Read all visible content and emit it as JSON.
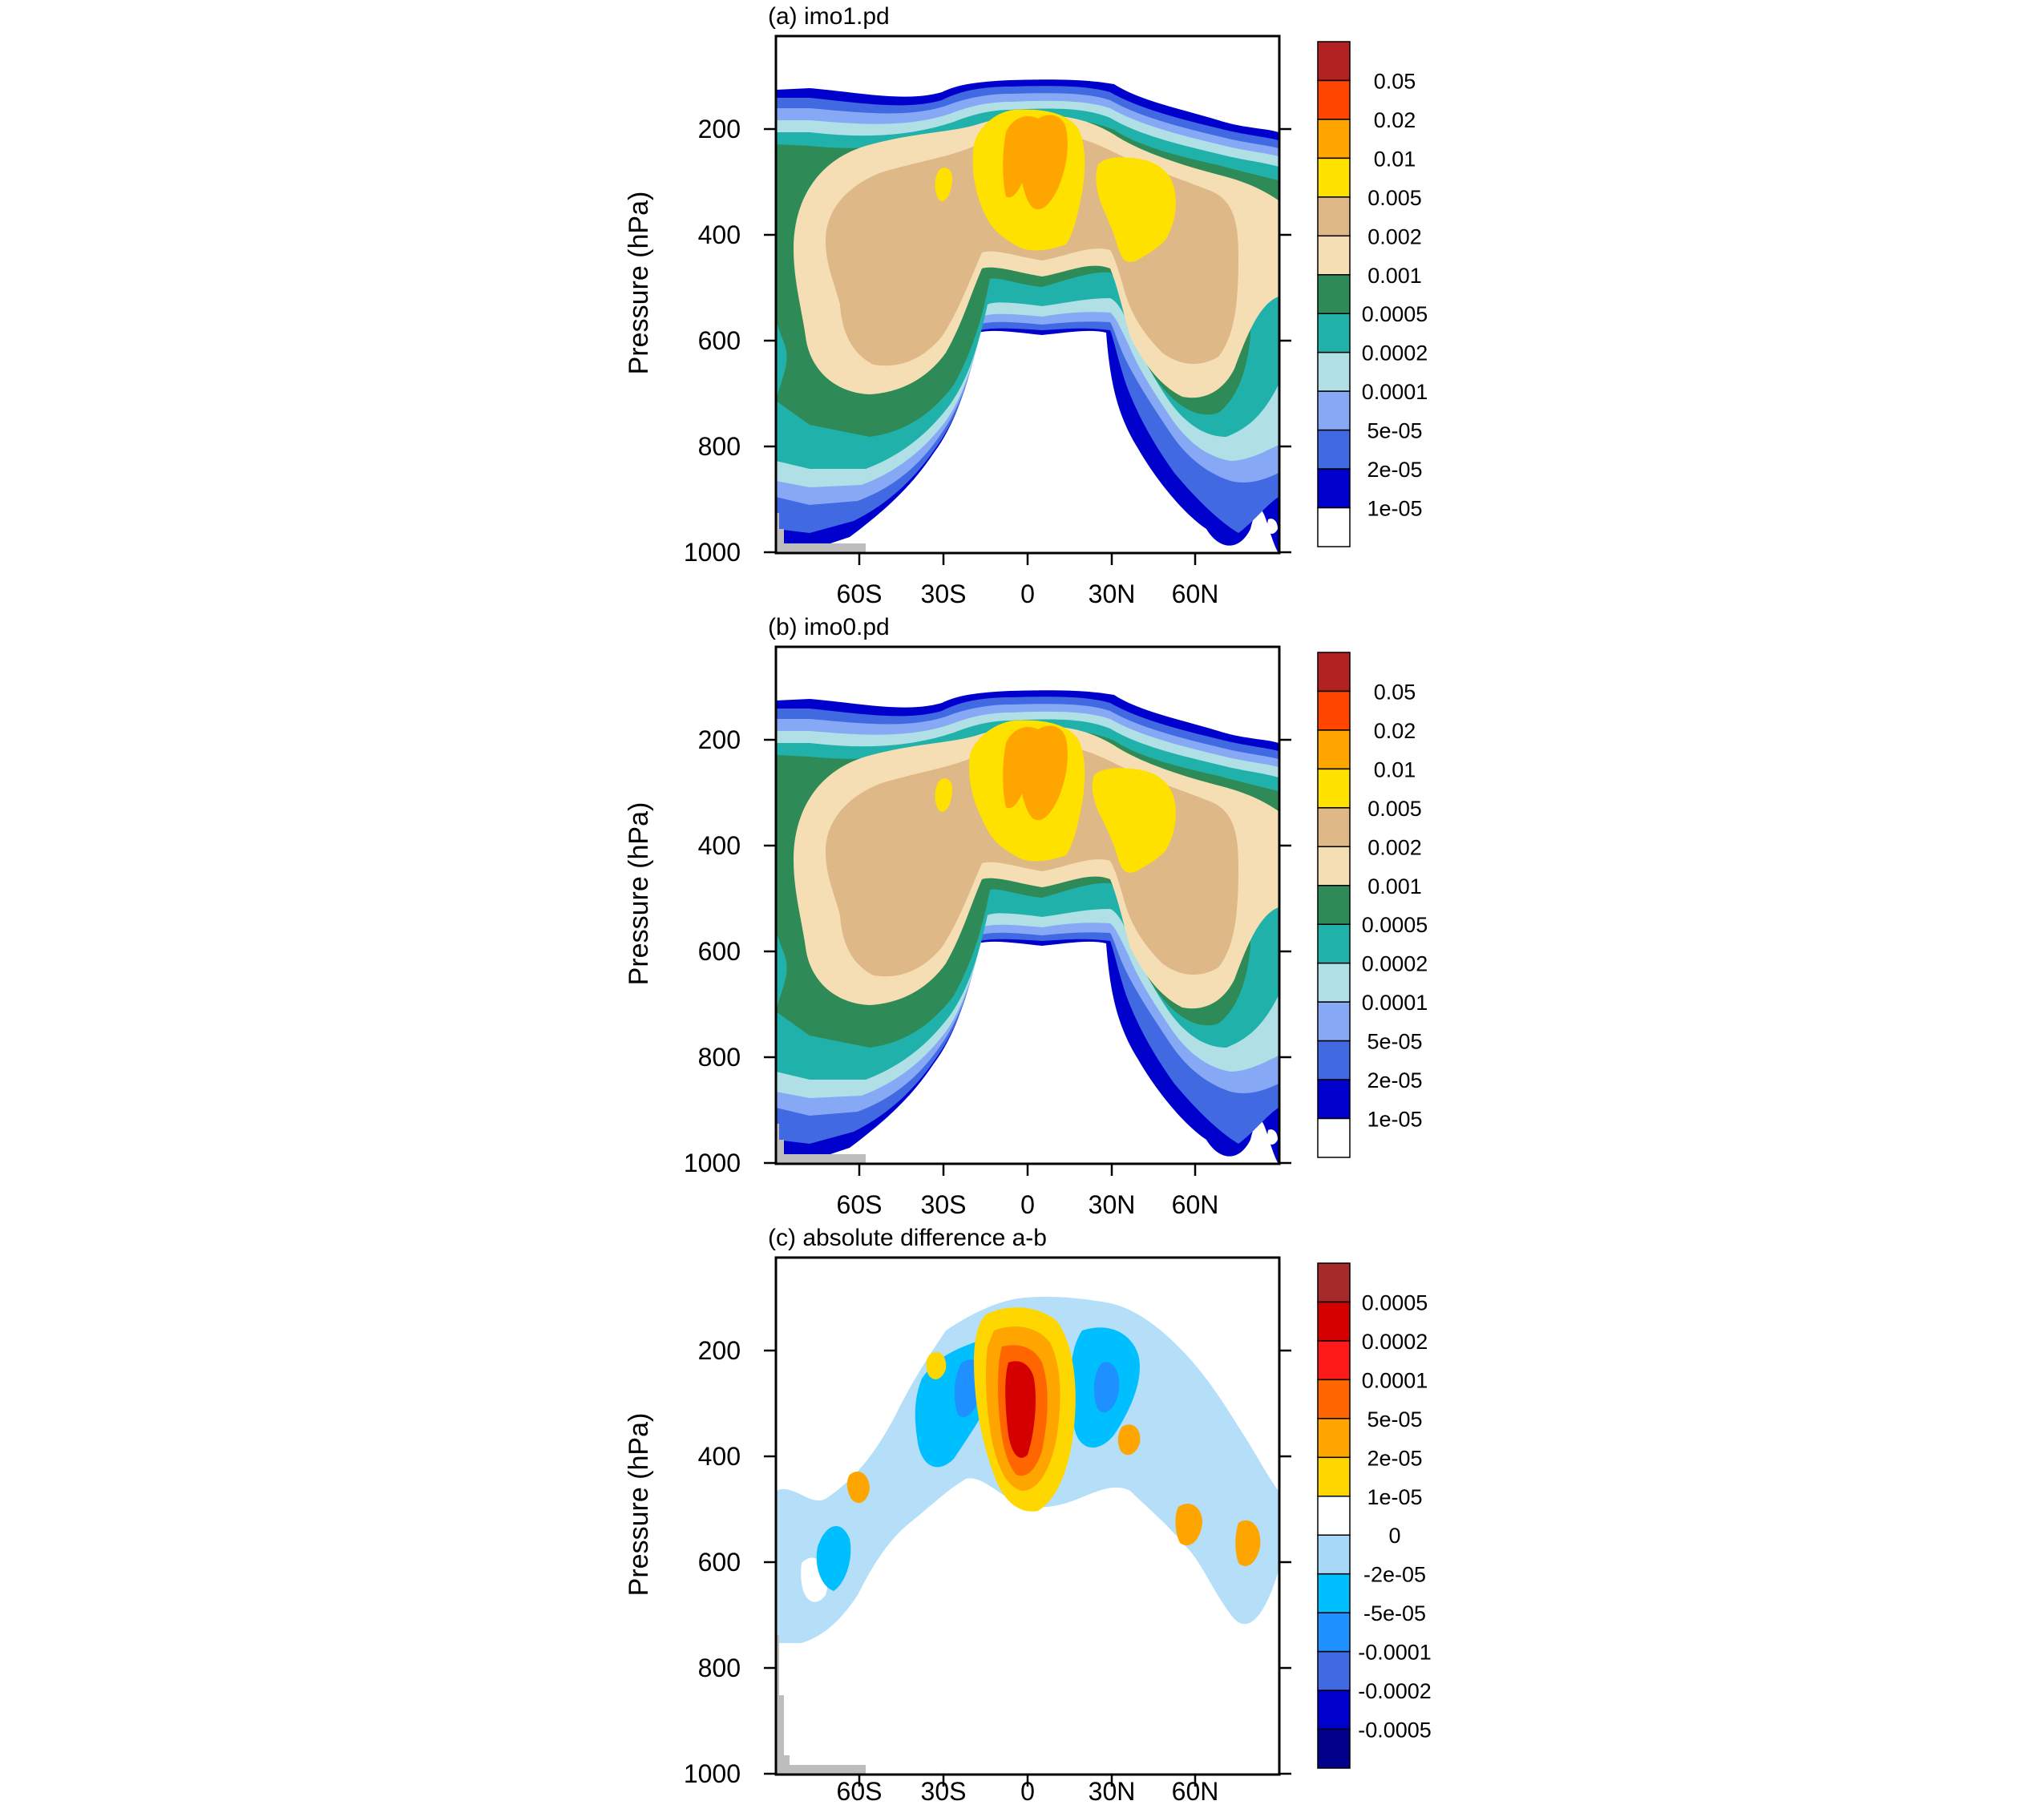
{
  "figure": {
    "ylabel": "Pressure (hPa)",
    "xticks": [
      "60S",
      "30S",
      "0",
      "30N",
      "60N"
    ],
    "yticks": [
      "200",
      "400",
      "600",
      "800",
      "1000"
    ]
  },
  "chart_data": [
    {
      "type": "heatmap",
      "title": "(a) imo1.pd",
      "xlabel": "",
      "ylabel": "Pressure (hPa)",
      "x_range": [
        "90S",
        "90N"
      ],
      "ylim": [
        1000,
        30
      ],
      "colorbar": {
        "levels": [
          "0.05",
          "0.02",
          "0.01",
          "0.005",
          "0.002",
          "0.001",
          "0.0005",
          "0.0002",
          "0.0001",
          "5e-05",
          "2e-05",
          "1e-05"
        ],
        "colors": [
          "#b22222",
          "#ff4500",
          "#ffa500",
          "#ffe100",
          "#deb887",
          "#f5deb3",
          "#2e8b57",
          "#20b2aa",
          "#b0e0e6",
          "#87a8f5",
          "#4169e1",
          "#0000cd",
          "#ffffff"
        ]
      }
    },
    {
      "type": "heatmap",
      "title": "(b) imo0.pd",
      "xlabel": "",
      "ylabel": "Pressure (hPa)",
      "x_range": [
        "90S",
        "90N"
      ],
      "ylim": [
        1000,
        30
      ],
      "colorbar": {
        "levels": [
          "0.05",
          "0.02",
          "0.01",
          "0.005",
          "0.002",
          "0.001",
          "0.0005",
          "0.0002",
          "0.0001",
          "5e-05",
          "2e-05",
          "1e-05"
        ],
        "colors": [
          "#b22222",
          "#ff4500",
          "#ffa500",
          "#ffe100",
          "#deb887",
          "#f5deb3",
          "#2e8b57",
          "#20b2aa",
          "#b0e0e6",
          "#87a8f5",
          "#4169e1",
          "#0000cd",
          "#ffffff"
        ]
      }
    },
    {
      "type": "heatmap",
      "title": "(c) absolute difference a-b",
      "xlabel": "",
      "ylabel": "Pressure (hPa)",
      "x_range": [
        "90S",
        "90N"
      ],
      "ylim": [
        1000,
        30
      ],
      "colorbar": {
        "levels": [
          "0.0005",
          "0.0002",
          "0.0001",
          "5e-05",
          "2e-05",
          "1e-05",
          "0",
          "-2e-05",
          "-5e-05",
          "-0.0001",
          "-0.0002",
          "-0.0005"
        ],
        "colors": [
          "#a52a2a",
          "#d40000",
          "#ff1a1a",
          "#ff6600",
          "#ffa500",
          "#ffd700",
          "#ffffff",
          "#a8d8f8",
          "#00bfff",
          "#1e90ff",
          "#4169e1",
          "#0000cd",
          "#00008b"
        ]
      }
    }
  ]
}
